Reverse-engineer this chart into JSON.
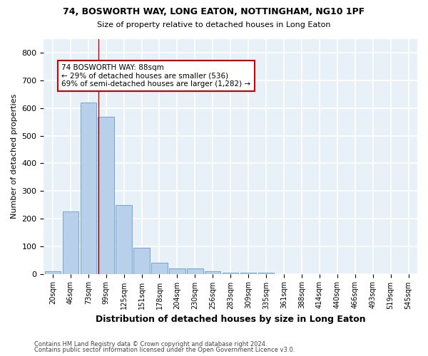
{
  "title1": "74, BOSWORTH WAY, LONG EATON, NOTTINGHAM, NG10 1PF",
  "title2": "Size of property relative to detached houses in Long Eaton",
  "xlabel": "Distribution of detached houses by size in Long Eaton",
  "ylabel": "Number of detached properties",
  "bar_color": "#b8d0ea",
  "bar_edge_color": "#6699cc",
  "background_color": "#e8f0f8",
  "grid_color": "#ffffff",
  "categories": [
    "20sqm",
    "46sqm",
    "73sqm",
    "99sqm",
    "125sqm",
    "151sqm",
    "178sqm",
    "204sqm",
    "230sqm",
    "256sqm",
    "283sqm",
    "309sqm",
    "335sqm",
    "361sqm",
    "388sqm",
    "414sqm",
    "440sqm",
    "466sqm",
    "493sqm",
    "519sqm",
    "545sqm"
  ],
  "values": [
    10,
    225,
    620,
    570,
    250,
    95,
    40,
    20,
    20,
    8,
    5,
    5,
    5,
    0,
    0,
    0,
    0,
    0,
    0,
    0,
    0
  ],
  "ylim": [
    0,
    850
  ],
  "yticks": [
    0,
    100,
    200,
    300,
    400,
    500,
    600,
    700,
    800
  ],
  "annotation_text": "74 BOSWORTH WAY: 88sqm\n← 29% of detached houses are smaller (536)\n69% of semi-detached houses are larger (1,282) →",
  "annotation_box_color": "#ffffff",
  "annotation_box_edge": "#cc0000",
  "vline_color": "#cc0000",
  "footer1": "Contains HM Land Registry data © Crown copyright and database right 2024.",
  "footer2": "Contains public sector information licensed under the Open Government Licence v3.0.",
  "fig_bg": "#ffffff"
}
